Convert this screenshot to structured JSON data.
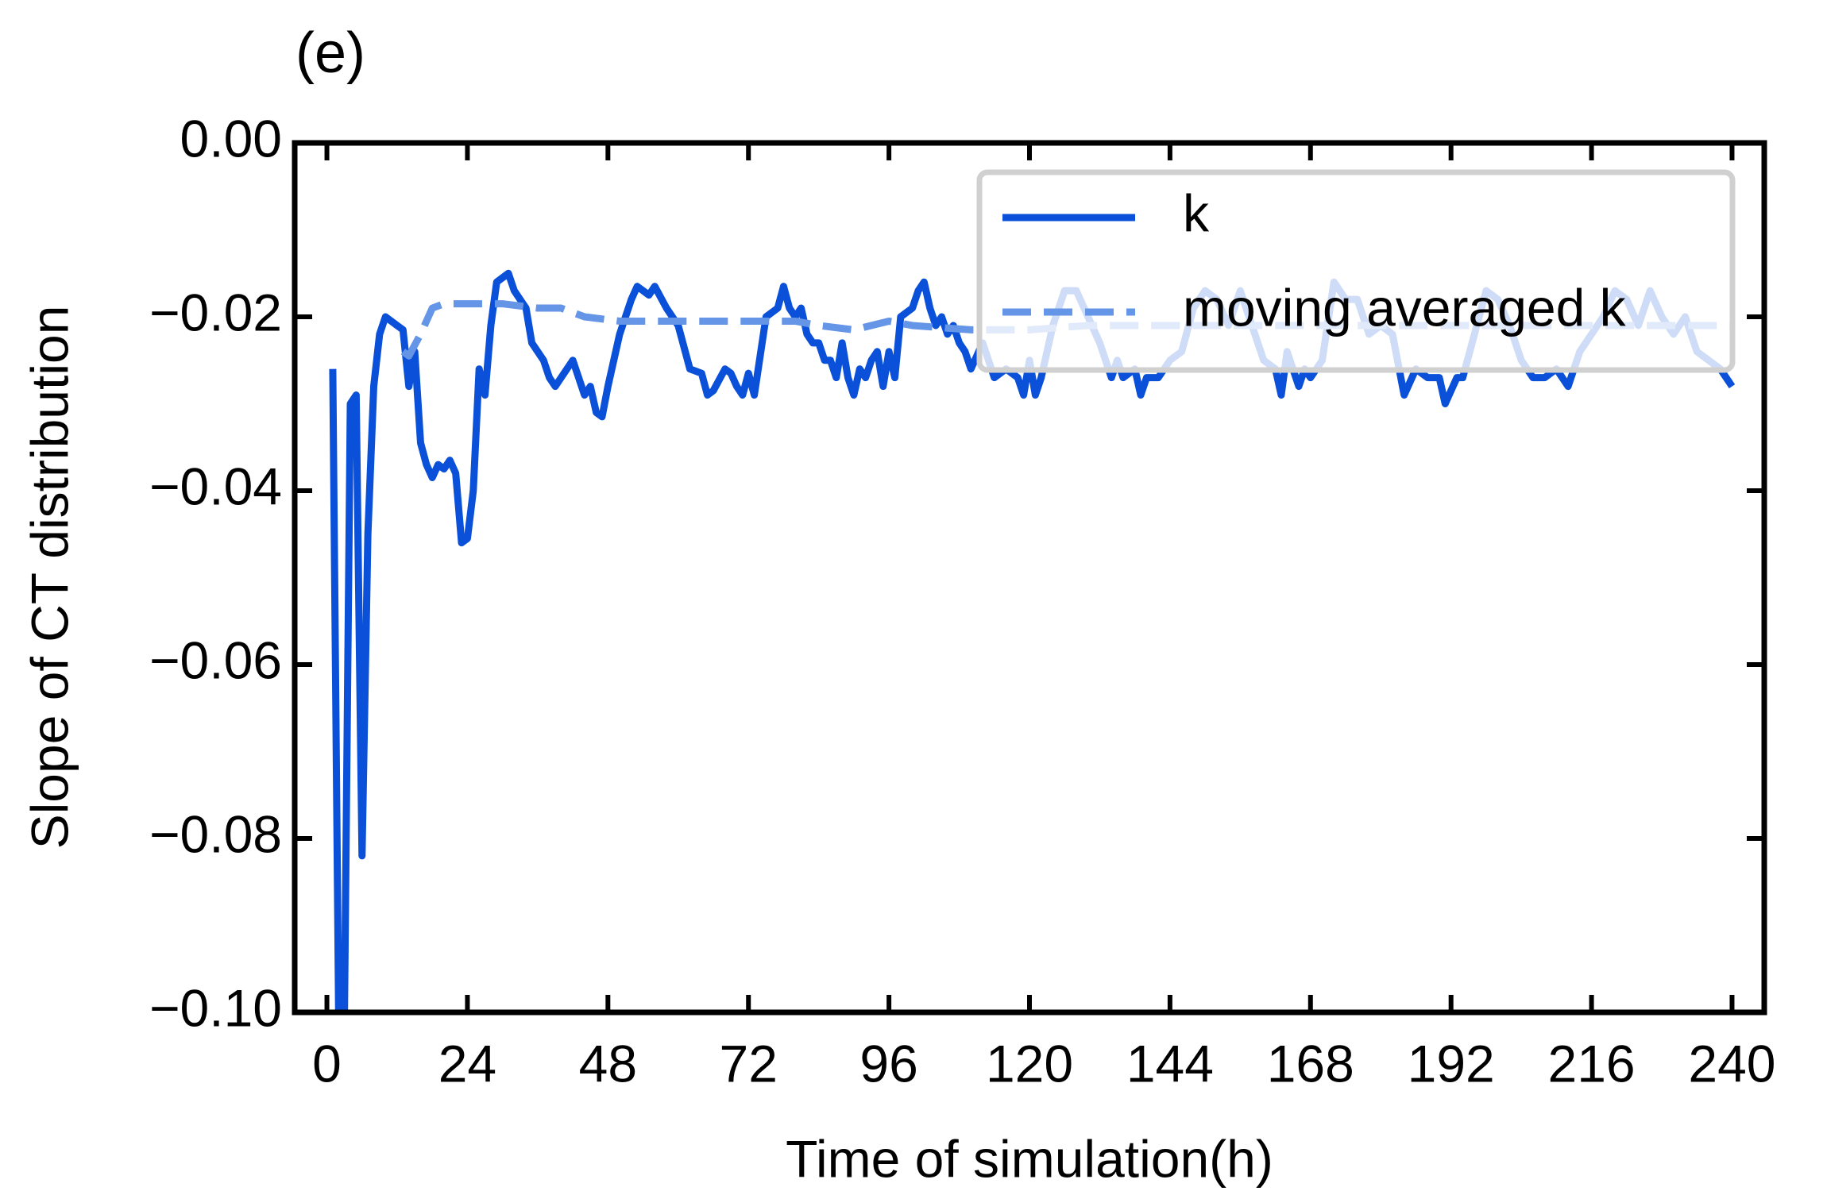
{
  "chart_data": {
    "type": "line",
    "title": "(e)",
    "xlabel": "Time of simulation(h)",
    "ylabel": "Slope of CT distribution",
    "xlim": [
      -5.5,
      245.5
    ],
    "ylim": [
      -0.1,
      0
    ],
    "xticks": [
      0,
      24,
      48,
      72,
      96,
      120,
      144,
      168,
      192,
      216,
      240
    ],
    "yticks": [
      {
        "value": -0.1,
        "label": "−0.10"
      },
      {
        "value": -0.08,
        "label": "−0.08"
      },
      {
        "value": -0.06,
        "label": "−0.06"
      },
      {
        "value": -0.04,
        "label": "−0.04"
      },
      {
        "value": -0.02,
        "label": "−0.02"
      },
      {
        "value": 0,
        "label": "0.00"
      }
    ],
    "legend": "upper right",
    "series": [
      {
        "name": "k",
        "color": "#0a50d8",
        "style": "solid",
        "x": [
          1,
          2,
          3,
          4,
          5,
          6,
          7,
          8,
          9,
          10,
          11,
          12,
          13,
          14,
          15,
          16,
          17,
          18,
          19,
          20,
          21,
          22,
          23,
          24,
          25,
          26,
          27,
          28,
          29,
          30,
          31,
          32,
          33,
          34,
          35,
          36,
          37,
          38,
          39,
          40,
          42,
          44,
          45,
          46,
          47,
          48,
          50,
          52,
          53,
          54,
          55,
          56,
          58,
          60,
          62,
          64,
          65,
          66,
          68,
          69,
          70,
          71,
          72,
          73,
          75,
          77,
          78,
          79,
          80,
          81,
          82,
          83,
          84,
          85,
          86,
          87,
          88,
          89,
          90,
          91,
          92,
          93,
          94,
          95,
          96,
          97,
          98,
          100,
          101,
          102,
          103,
          104,
          105,
          106,
          107,
          108,
          109,
          110,
          112,
          114,
          116,
          118,
          119,
          120,
          121,
          122,
          124,
          126,
          128,
          130,
          132,
          134,
          135,
          136,
          138,
          139,
          140,
          142,
          144,
          146,
          148,
          150,
          152,
          154,
          156,
          158,
          160,
          162,
          163,
          164,
          166,
          167,
          168,
          170,
          172,
          174,
          176,
          178,
          180,
          182,
          184,
          186,
          188,
          190,
          191,
          193,
          194,
          196,
          198,
          200,
          202,
          204,
          206,
          208,
          210,
          212,
          214,
          216,
          218,
          220,
          222,
          224,
          226,
          228,
          230,
          232,
          234,
          236,
          238,
          240
        ],
        "values": [
          -0.026,
          -0.1,
          -0.1,
          -0.03,
          -0.029,
          -0.082,
          -0.045,
          -0.028,
          -0.022,
          -0.02,
          -0.0205,
          -0.021,
          -0.0215,
          -0.028,
          -0.024,
          -0.0345,
          -0.037,
          -0.0385,
          -0.037,
          -0.0375,
          -0.0365,
          -0.038,
          -0.046,
          -0.0455,
          -0.04,
          -0.026,
          -0.029,
          -0.021,
          -0.016,
          -0.0155,
          -0.015,
          -0.017,
          -0.018,
          -0.019,
          -0.023,
          -0.024,
          -0.025,
          -0.027,
          -0.028,
          -0.027,
          -0.025,
          -0.029,
          -0.028,
          -0.031,
          -0.0315,
          -0.028,
          -0.022,
          -0.018,
          -0.0165,
          -0.017,
          -0.0175,
          -0.0165,
          -0.019,
          -0.021,
          -0.026,
          -0.0265,
          -0.029,
          -0.0285,
          -0.026,
          -0.0265,
          -0.028,
          -0.029,
          -0.0265,
          -0.029,
          -0.02,
          -0.019,
          -0.0165,
          -0.019,
          -0.02,
          -0.019,
          -0.022,
          -0.023,
          -0.023,
          -0.025,
          -0.025,
          -0.027,
          -0.023,
          -0.027,
          -0.029,
          -0.026,
          -0.027,
          -0.025,
          -0.024,
          -0.028,
          -0.024,
          -0.027,
          -0.02,
          -0.019,
          -0.017,
          -0.016,
          -0.019,
          -0.021,
          -0.02,
          -0.022,
          -0.021,
          -0.023,
          -0.024,
          -0.026,
          -0.023,
          -0.027,
          -0.026,
          -0.027,
          -0.029,
          -0.025,
          -0.029,
          -0.027,
          -0.021,
          -0.017,
          -0.017,
          -0.02,
          -0.023,
          -0.027,
          -0.025,
          -0.027,
          -0.026,
          -0.029,
          -0.027,
          -0.027,
          -0.025,
          -0.024,
          -0.019,
          -0.017,
          -0.018,
          -0.021,
          -0.017,
          -0.021,
          -0.025,
          -0.026,
          -0.029,
          -0.024,
          -0.028,
          -0.026,
          -0.027,
          -0.025,
          -0.016,
          -0.018,
          -0.018,
          -0.022,
          -0.021,
          -0.022,
          -0.029,
          -0.026,
          -0.027,
          -0.027,
          -0.03,
          -0.027,
          -0.027,
          -0.022,
          -0.017,
          -0.018,
          -0.021,
          -0.025,
          -0.027,
          -0.027,
          -0.026,
          -0.028,
          -0.024,
          -0.022,
          -0.02,
          -0.017,
          -0.018,
          -0.021,
          -0.017,
          -0.02,
          -0.022,
          -0.02,
          -0.024,
          -0.025,
          -0.026,
          -0.028
        ]
      },
      {
        "name": "moving averaged k",
        "color": "#6495e6",
        "style": "dashed",
        "x": [
          13,
          14,
          16,
          18,
          20,
          24,
          30,
          36,
          40,
          42,
          44,
          50,
          60,
          70,
          80,
          84,
          90,
          96,
          100,
          110,
          120,
          130,
          140,
          150,
          160,
          170,
          180,
          190,
          200,
          210,
          220,
          230,
          240
        ],
        "values": [
          -0.024,
          -0.0245,
          -0.022,
          -0.019,
          -0.0185,
          -0.0185,
          -0.0185,
          -0.019,
          -0.019,
          -0.0195,
          -0.02,
          -0.0205,
          -0.0205,
          -0.0205,
          -0.0205,
          -0.021,
          -0.0215,
          -0.0205,
          -0.021,
          -0.0215,
          -0.0215,
          -0.021,
          -0.021,
          -0.021,
          -0.021,
          -0.021,
          -0.021,
          -0.021,
          -0.021,
          -0.021,
          -0.021,
          -0.021,
          -0.021
        ]
      }
    ]
  }
}
